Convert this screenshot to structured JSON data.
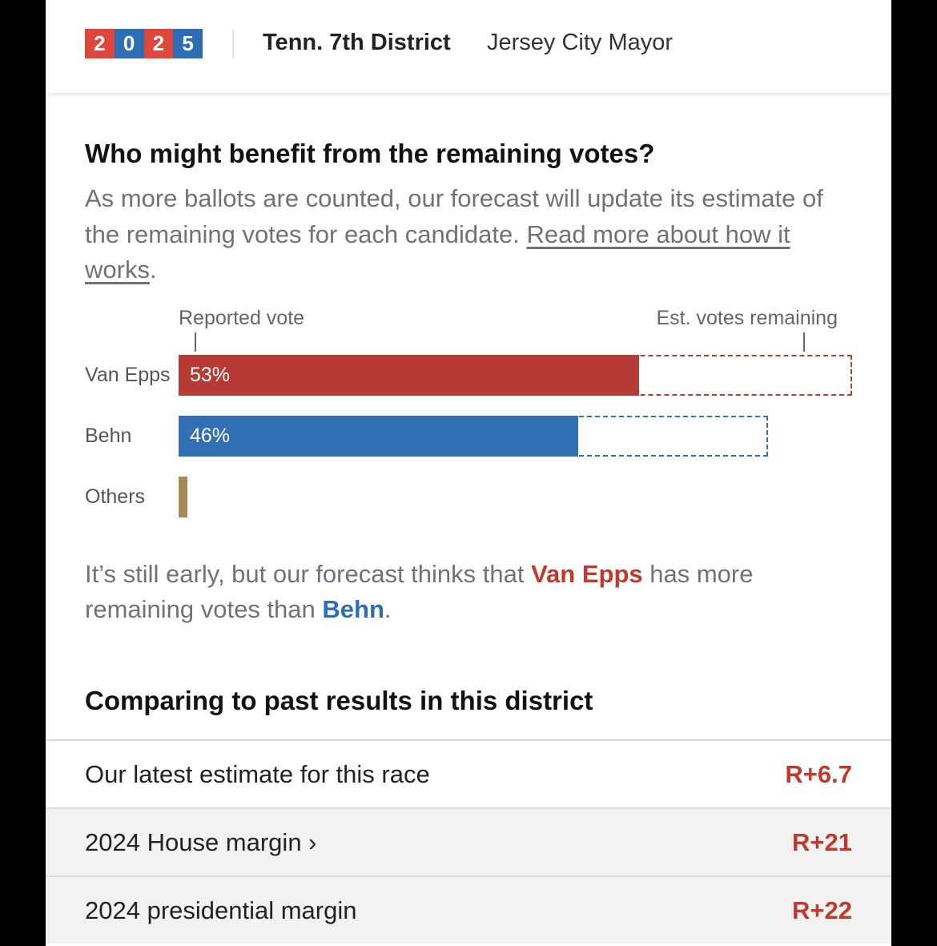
{
  "header": {
    "logo_digits": [
      "2",
      "0",
      "2",
      "5"
    ],
    "logo_colors": [
      "#e0473c",
      "#2c6db3",
      "#e0473c",
      "#2c6db3"
    ],
    "nav_active": "Tenn. 7th District",
    "nav_item": "Jersey City Mayor"
  },
  "section1": {
    "title": "Who might benefit from the remaining votes?",
    "desc_prefix": "As more ballots are counted, our forecast will update its estimate of the remaining votes for each candidate. ",
    "desc_link": "Read more about how it works",
    "desc_suffix": "."
  },
  "chart_data": {
    "type": "bar",
    "orientation": "horizontal",
    "axis_labels": {
      "reported": "Reported vote",
      "remaining": "Est. votes remaining"
    },
    "categories": [
      "Van Epps",
      "Behn",
      "Others"
    ],
    "reported_pct": [
      53,
      46,
      1
    ],
    "reported_labels": [
      "53%",
      "46%",
      ""
    ],
    "estimated_total_pct": [
      77.5,
      67.8,
      null
    ],
    "colors": {
      "Van Epps": "#b73a34",
      "Behn": "#3270b5",
      "Others": "#a58a54"
    }
  },
  "summary": {
    "prefix": "It’s still early, but our forecast thinks that ",
    "cand1": "Van Epps",
    "middle": " has more remaining votes than ",
    "cand2": "Behn",
    "suffix": "."
  },
  "section2": {
    "title": "Comparing to past results in this district",
    "rows": [
      {
        "label": "Our latest estimate for this race",
        "value": "R+6.7",
        "bg": "#ffffff"
      },
      {
        "label": "2024 House margin ›",
        "value": "R+21",
        "bg": "#f2f2f2"
      },
      {
        "label": "2024 presidential margin",
        "value": "R+22",
        "bg": "#f2f2f2"
      }
    ]
  }
}
